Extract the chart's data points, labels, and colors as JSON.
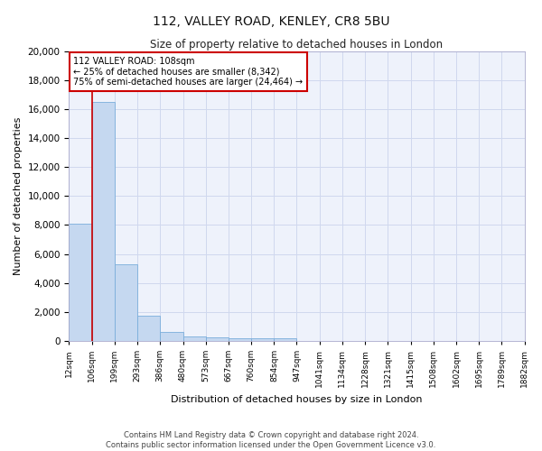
{
  "title": "112, VALLEY ROAD, KENLEY, CR8 5BU",
  "subtitle": "Size of property relative to detached houses in London",
  "xlabel": "Distribution of detached houses by size in London",
  "ylabel": "Number of detached properties",
  "annotation_title": "112 VALLEY ROAD: 108sqm",
  "annotation_line1": "← 25% of detached houses are smaller (8,342)",
  "annotation_line2": "75% of semi-detached houses are larger (24,464) →",
  "footer_line1": "Contains HM Land Registry data © Crown copyright and database right 2024.",
  "footer_line2": "Contains public sector information licensed under the Open Government Licence v3.0.",
  "bin_edges": [
    12,
    106,
    199,
    293,
    386,
    480,
    573,
    667,
    760,
    854,
    947,
    1041,
    1134,
    1228,
    1321,
    1415,
    1508,
    1602,
    1695,
    1789,
    1882
  ],
  "bin_counts": [
    8100,
    16500,
    5300,
    1750,
    650,
    340,
    260,
    200,
    170,
    160,
    0,
    0,
    0,
    0,
    0,
    0,
    0,
    0,
    0,
    0
  ],
  "bar_color": "#c5d8f0",
  "bar_edge_color": "#7aaedb",
  "vline_color": "#cc0000",
  "annotation_box_facecolor": "#ffffff",
  "annotation_box_edgecolor": "#cc0000",
  "grid_color": "#d0d8ee",
  "background_color": "#eef2fb",
  "ylim": [
    0,
    20000
  ],
  "yticks": [
    0,
    2000,
    4000,
    6000,
    8000,
    10000,
    12000,
    14000,
    16000,
    18000,
    20000
  ],
  "tick_labels": [
    "12sqm",
    "106sqm",
    "199sqm",
    "293sqm",
    "386sqm",
    "480sqm",
    "573sqm",
    "667sqm",
    "760sqm",
    "854sqm",
    "947sqm",
    "1041sqm",
    "1134sqm",
    "1228sqm",
    "1321sqm",
    "1415sqm",
    "1508sqm",
    "1602sqm",
    "1695sqm",
    "1789sqm",
    "1882sqm"
  ]
}
